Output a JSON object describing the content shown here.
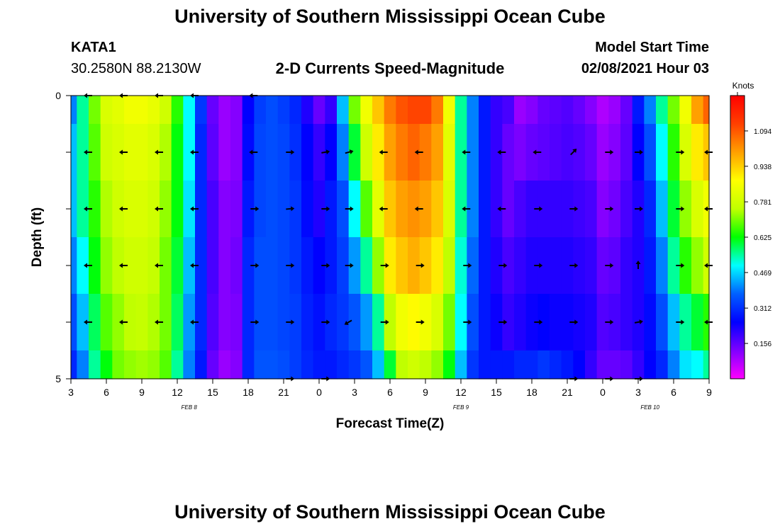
{
  "header": {
    "title": "University of Southern Mississippi Ocean Cube",
    "station_id": "KATA1",
    "station_coords": "30.2580N 88.2130W",
    "subtitle": "2-D Currents Speed-Magnitude",
    "model_start_label": "Model Start Time",
    "model_start_value": "02/08/2021 Hour 03",
    "footer_title": "University of Southern Mississippi Ocean Cube"
  },
  "colors": {
    "scale": [
      "#ff00ff",
      "#8000ff",
      "#0000ff",
      "#0060ff",
      "#00ffff",
      "#00ff00",
      "#c0ff00",
      "#ffff00",
      "#ffa000",
      "#ff4000",
      "#ff0000"
    ],
    "arrow": "#000000",
    "frame": "#000000"
  },
  "chart_data": {
    "type": "heatmap",
    "title": "2-D Currents Speed-Magnitude",
    "xlabel": "Forecast Time(Z)",
    "ylabel": "Depth (ft)",
    "x_tick_labels": [
      "3",
      "6",
      "9",
      "12",
      "15",
      "18",
      "21",
      "0",
      "3",
      "6",
      "9",
      "12",
      "15",
      "18",
      "21",
      "0",
      "3",
      "6",
      "9"
    ],
    "x_hour_offsets": [
      0,
      3,
      6,
      9,
      12,
      15,
      18,
      21,
      24,
      27,
      30,
      33,
      36,
      39,
      42,
      45,
      48,
      51,
      54
    ],
    "date_labels": [
      {
        "label": "FEB 8",
        "hour_offset": 10
      },
      {
        "label": "FEB 9",
        "hour_offset": 33
      },
      {
        "label": "FEB 10",
        "hour_offset": 49
      }
    ],
    "xlim": [
      0,
      54
    ],
    "ylim": [
      0,
      5
    ],
    "y_tick_labels": [
      {
        "value": 0,
        "label": "0"
      },
      {
        "value": 1,
        "label": ""
      },
      {
        "value": 2,
        "label": ""
      },
      {
        "value": 3,
        "label": ""
      },
      {
        "value": 4,
        "label": ""
      },
      {
        "value": 5,
        "label": "5"
      }
    ],
    "colorbar": {
      "label": "Knots",
      "min": 0,
      "max": 1.25,
      "ticks": [
        "1.094",
        "0.938",
        "0.781",
        "0.625",
        "0.469",
        "0.312",
        "0.156"
      ],
      "tick_values": [
        1.094,
        0.938,
        0.781,
        0.625,
        0.469,
        0.312,
        0.156
      ]
    },
    "depth_bin_edges": [
      0,
      0.5,
      1.5,
      2.5,
      3.5,
      4.5,
      5
    ],
    "speed_profiles": [
      {
        "t": 0,
        "s": [
          0.4,
          0.45,
          0.45,
          0.4,
          0.35,
          0.3
        ]
      },
      {
        "t": 1,
        "s": [
          0.55,
          0.55,
          0.55,
          0.5,
          0.45,
          0.4
        ]
      },
      {
        "t": 2,
        "s": [
          0.7,
          0.68,
          0.65,
          0.62,
          0.58,
          0.55
        ]
      },
      {
        "t": 3,
        "s": [
          0.8,
          0.78,
          0.74,
          0.72,
          0.68,
          0.62
        ]
      },
      {
        "t": 4,
        "s": [
          0.82,
          0.8,
          0.78,
          0.75,
          0.72,
          0.7
        ]
      },
      {
        "t": 5,
        "s": [
          0.85,
          0.82,
          0.8,
          0.78,
          0.75,
          0.72
        ]
      },
      {
        "t": 6,
        "s": [
          0.85,
          0.82,
          0.8,
          0.78,
          0.76,
          0.73
        ]
      },
      {
        "t": 7,
        "s": [
          0.83,
          0.8,
          0.78,
          0.76,
          0.74,
          0.72
        ]
      },
      {
        "t": 8,
        "s": [
          0.78,
          0.74,
          0.72,
          0.7,
          0.7,
          0.68
        ]
      },
      {
        "t": 9,
        "s": [
          0.65,
          0.62,
          0.62,
          0.6,
          0.58,
          0.55
        ]
      },
      {
        "t": 10,
        "s": [
          0.5,
          0.5,
          0.48,
          0.45,
          0.42,
          0.4
        ]
      },
      {
        "t": 11,
        "s": [
          0.32,
          0.3,
          0.3,
          0.3,
          0.3,
          0.28
        ]
      },
      {
        "t": 12,
        "s": [
          0.15,
          0.16,
          0.18,
          0.18,
          0.17,
          0.15
        ]
      },
      {
        "t": 13,
        "s": [
          0.1,
          0.1,
          0.12,
          0.12,
          0.12,
          0.1
        ]
      },
      {
        "t": 14,
        "s": [
          0.12,
          0.12,
          0.13,
          0.14,
          0.13,
          0.12
        ]
      },
      {
        "t": 15,
        "s": [
          0.25,
          0.26,
          0.28,
          0.3,
          0.3,
          0.3
        ]
      },
      {
        "t": 16,
        "s": [
          0.33,
          0.34,
          0.34,
          0.35,
          0.35,
          0.36
        ]
      },
      {
        "t": 17,
        "s": [
          0.35,
          0.35,
          0.35,
          0.35,
          0.35,
          0.36
        ]
      },
      {
        "t": 18,
        "s": [
          0.33,
          0.34,
          0.34,
          0.34,
          0.34,
          0.35
        ]
      },
      {
        "t": 19,
        "s": [
          0.3,
          0.31,
          0.32,
          0.32,
          0.33,
          0.33
        ]
      },
      {
        "t": 20,
        "s": [
          0.22,
          0.25,
          0.26,
          0.28,
          0.29,
          0.3
        ]
      },
      {
        "t": 21,
        "s": [
          0.15,
          0.2,
          0.22,
          0.25,
          0.27,
          0.28
        ]
      },
      {
        "t": 22,
        "s": [
          0.2,
          0.25,
          0.28,
          0.28,
          0.3,
          0.28
        ]
      },
      {
        "t": 23,
        "s": [
          0.45,
          0.4,
          0.35,
          0.33,
          0.32,
          0.3
        ]
      },
      {
        "t": 24,
        "s": [
          0.7,
          0.6,
          0.5,
          0.42,
          0.36,
          0.32
        ]
      },
      {
        "t": 25,
        "s": [
          0.85,
          0.78,
          0.68,
          0.55,
          0.42,
          0.36
        ]
      },
      {
        "t": 26,
        "s": [
          0.95,
          0.9,
          0.82,
          0.72,
          0.55,
          0.45
        ]
      },
      {
        "t": 27,
        "s": [
          1.05,
          1.0,
          0.95,
          0.9,
          0.75,
          0.6
        ]
      },
      {
        "t": 28,
        "s": [
          1.1,
          1.05,
          1.0,
          0.95,
          0.85,
          0.75
        ]
      },
      {
        "t": 29,
        "s": [
          1.12,
          1.08,
          1.02,
          0.98,
          0.88,
          0.78
        ]
      },
      {
        "t": 30,
        "s": [
          1.12,
          1.05,
          1.0,
          0.95,
          0.85,
          0.75
        ]
      },
      {
        "t": 31,
        "s": [
          1.05,
          1.0,
          0.95,
          0.9,
          0.8,
          0.72
        ]
      },
      {
        "t": 32,
        "s": [
          0.85,
          0.82,
          0.8,
          0.75,
          0.7,
          0.62
        ]
      },
      {
        "t": 33,
        "s": [
          0.55,
          0.55,
          0.55,
          0.52,
          0.5,
          0.45
        ]
      },
      {
        "t": 34,
        "s": [
          0.4,
          0.4,
          0.4,
          0.38,
          0.35,
          0.32
        ]
      },
      {
        "t": 35,
        "s": [
          0.28,
          0.28,
          0.28,
          0.28,
          0.28,
          0.28
        ]
      },
      {
        "t": 36,
        "s": [
          0.2,
          0.2,
          0.2,
          0.22,
          0.24,
          0.28
        ]
      },
      {
        "t": 37,
        "s": [
          0.18,
          0.15,
          0.15,
          0.18,
          0.2,
          0.28
        ]
      },
      {
        "t": 38,
        "s": [
          0.1,
          0.13,
          0.18,
          0.2,
          0.22,
          0.3
        ]
      },
      {
        "t": 39,
        "s": [
          0.12,
          0.15,
          0.2,
          0.22,
          0.24,
          0.3
        ]
      },
      {
        "t": 40,
        "s": [
          0.15,
          0.16,
          0.2,
          0.22,
          0.25,
          0.32
        ]
      },
      {
        "t": 41,
        "s": [
          0.16,
          0.17,
          0.2,
          0.22,
          0.24,
          0.3
        ]
      },
      {
        "t": 42,
        "s": [
          0.17,
          0.18,
          0.2,
          0.22,
          0.24,
          0.28
        ]
      },
      {
        "t": 43,
        "s": [
          0.15,
          0.17,
          0.19,
          0.21,
          0.23,
          0.25
        ]
      },
      {
        "t": 44,
        "s": [
          0.12,
          0.15,
          0.18,
          0.2,
          0.22,
          0.2
        ]
      },
      {
        "t": 45,
        "s": [
          0.08,
          0.1,
          0.12,
          0.15,
          0.17,
          0.15
        ]
      },
      {
        "t": 46,
        "s": [
          0.1,
          0.12,
          0.14,
          0.16,
          0.18,
          0.15
        ]
      },
      {
        "t": 47,
        "s": [
          0.15,
          0.16,
          0.18,
          0.2,
          0.2,
          0.16
        ]
      },
      {
        "t": 48,
        "s": [
          0.28,
          0.25,
          0.22,
          0.22,
          0.22,
          0.2
        ]
      },
      {
        "t": 49,
        "s": [
          0.4,
          0.35,
          0.3,
          0.28,
          0.26,
          0.25
        ]
      },
      {
        "t": 50,
        "s": [
          0.55,
          0.5,
          0.45,
          0.4,
          0.35,
          0.3
        ]
      },
      {
        "t": 51,
        "s": [
          0.7,
          0.65,
          0.6,
          0.55,
          0.45,
          0.4
        ]
      },
      {
        "t": 52,
        "s": [
          0.85,
          0.8,
          0.72,
          0.65,
          0.55,
          0.48
        ]
      },
      {
        "t": 53,
        "s": [
          1.0,
          0.9,
          0.8,
          0.72,
          0.6,
          0.5
        ]
      },
      {
        "t": 54,
        "s": [
          1.08,
          0.95,
          0.85,
          0.78,
          0.65,
          0.55
        ]
      }
    ],
    "vector_hours": [
      1.5,
      4.5,
      7.5,
      10.5,
      15.5,
      18.5,
      21.5,
      23.5,
      26.5,
      29.5,
      33.5,
      36.5,
      39.5,
      42.5,
      45.5,
      48,
      51.5,
      54
    ],
    "vector_depths": [
      0,
      1,
      2,
      3,
      4,
      5
    ],
    "vectors": [
      {
        "depth": 0,
        "dirs": [
          180,
          180,
          180,
          180,
          180,
          null,
          null,
          null,
          null,
          null,
          null,
          null,
          null,
          null,
          null,
          null,
          null,
          null
        ]
      },
      {
        "depth": 1,
        "dirs": [
          180,
          180,
          180,
          180,
          180,
          0,
          10,
          15,
          180,
          180,
          180,
          180,
          180,
          45,
          0,
          0,
          0,
          180
        ]
      },
      {
        "depth": 2,
        "dirs": [
          180,
          180,
          180,
          180,
          0,
          5,
          0,
          0,
          180,
          180,
          180,
          180,
          0,
          0,
          0,
          0,
          0,
          180
        ]
      },
      {
        "depth": 3,
        "dirs": [
          180,
          180,
          180,
          180,
          0,
          0,
          0,
          0,
          0,
          0,
          0,
          0,
          0,
          0,
          0,
          90,
          0,
          180
        ]
      },
      {
        "depth": 4,
        "dirs": [
          180,
          180,
          180,
          180,
          0,
          0,
          0,
          210,
          0,
          0,
          0,
          0,
          0,
          0,
          0,
          10,
          0,
          180
        ]
      },
      {
        "depth": 5,
        "dirs": [
          null,
          null,
          null,
          null,
          null,
          0,
          0,
          null,
          null,
          null,
          null,
          null,
          null,
          0,
          0,
          0,
          null,
          null
        ]
      }
    ]
  }
}
